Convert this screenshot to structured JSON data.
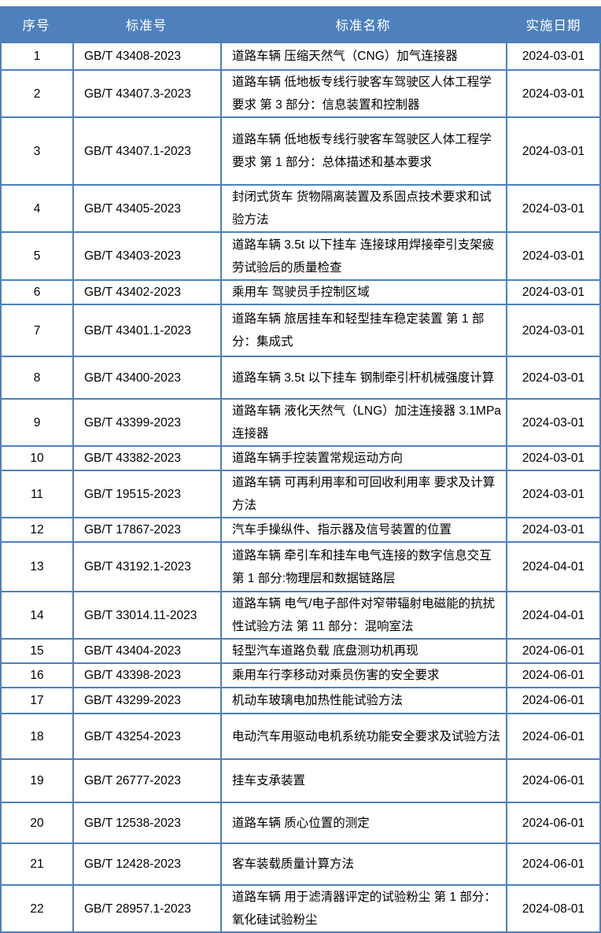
{
  "colors": {
    "header_bg": "#4e80bc",
    "header_text": "#ffffff",
    "border": "#4e80bc",
    "body_text": "#000000"
  },
  "table": {
    "columns": [
      "序号",
      "标准号",
      "标准名称",
      "实施日期"
    ],
    "rows": [
      {
        "no": "1",
        "std": "GB/T 43408-2023",
        "name": "道路车辆 压缩天然气（CNG）加气连接器",
        "date": "2024-03-01"
      },
      {
        "no": "2",
        "std": "GB/T 43407.3-2023",
        "name": "道路车辆 低地板专线行驶客车驾驶区人体工程学要求 第 3 部分：信息装置和控制器",
        "date": "2024-03-01"
      },
      {
        "no": "3",
        "std": "GB/T 43407.1-2023",
        "name": "道路车辆 低地板专线行驶客车驾驶区人体工程学要求 第 1 部分：总体描述和基本要求",
        "date": "2024-03-01"
      },
      {
        "no": "4",
        "std": "GB/T 43405-2023",
        "name": "封闭式货车 货物隔离装置及系固点技术要求和试验方法",
        "date": "2024-03-01"
      },
      {
        "no": "5",
        "std": "GB/T 43403-2023",
        "name": "道路车辆 3.5t 以下挂车 连接球用焊接牵引支架疲劳试验后的质量检查",
        "date": "2024-03-01"
      },
      {
        "no": "6",
        "std": "GB/T 43402-2023",
        "name": "乘用车 驾驶员手控制区域",
        "date": "2024-03-01"
      },
      {
        "no": "7",
        "std": "GB/T 43401.1-2023",
        "name": "道路车辆 旅居挂车和轻型挂车稳定装置 第 1 部分：集成式",
        "date": "2024-03-01"
      },
      {
        "no": "8",
        "std": "GB/T 43400-2023",
        "name": "道路车辆 3.5t 以下挂车 钢制牵引杆机械强度计算",
        "date": "2024-03-01"
      },
      {
        "no": "9",
        "std": "GB/T 43399-2023",
        "name": "道路车辆 液化天然气（LNG）加注连接器 3.1MPa 连接器",
        "date": "2024-03-01"
      },
      {
        "no": "10",
        "std": "GB/T 43382-2023",
        "name": "道路车辆手控装置常规运动方向",
        "date": "2024-03-01"
      },
      {
        "no": "11",
        "std": "GB/T 19515-2023",
        "name": "道路车辆 可再利用率和可回收利用率 要求及计算方法",
        "date": "2024-03-01"
      },
      {
        "no": "12",
        "std": "GB/T 17867-2023",
        "name": "汽车手操纵件、指示器及信号装置的位置",
        "date": "2024-03-01"
      },
      {
        "no": "13",
        "std": "GB/T 43192.1-2023",
        "name": "道路车辆 牵引车和挂车电气连接的数字信息交互 第 1 部分:物理层和数据链路层",
        "date": "2024-04-01"
      },
      {
        "no": "14",
        "std": "GB/T 33014.11-2023",
        "name": "道路车辆 电气/电子部件对窄带辐射电磁能的抗扰性试验方法 第 11 部分：混响室法",
        "date": "2024-04-01"
      },
      {
        "no": "15",
        "std": "GB/T 43404-2023",
        "name": "轻型汽车道路负载 底盘测功机再现",
        "date": "2024-06-01"
      },
      {
        "no": "16",
        "std": "GB/T 43398-2023",
        "name": "乘用车行李移动对乘员伤害的安全要求",
        "date": "2024-06-01"
      },
      {
        "no": "17",
        "std": "GB/T 43299-2023",
        "name": "机动车玻璃电加热性能试验方法",
        "date": "2024-06-01"
      },
      {
        "no": "18",
        "std": "GB/T 43254-2023",
        "name": "电动汽车用驱动电机系统功能安全要求及试验方法",
        "date": "2024-06-01"
      },
      {
        "no": "19",
        "std": "GB/T 26777-2023",
        "name": "挂车支承装置",
        "date": "2024-06-01"
      },
      {
        "no": "20",
        "std": "GB/T 12538-2023",
        "name": "道路车辆 质心位置的测定",
        "date": "2024-06-01"
      },
      {
        "no": "21",
        "std": "GB/T 12428-2023",
        "name": "客车装载质量计算方法",
        "date": "2024-06-01"
      },
      {
        "no": "22",
        "std": "GB/T 28957.1-2023",
        "name": "道路车辆 用于滤清器评定的试验粉尘 第 1 部分：氧化硅试验粉尘",
        "date": "2024-08-01"
      }
    ]
  }
}
